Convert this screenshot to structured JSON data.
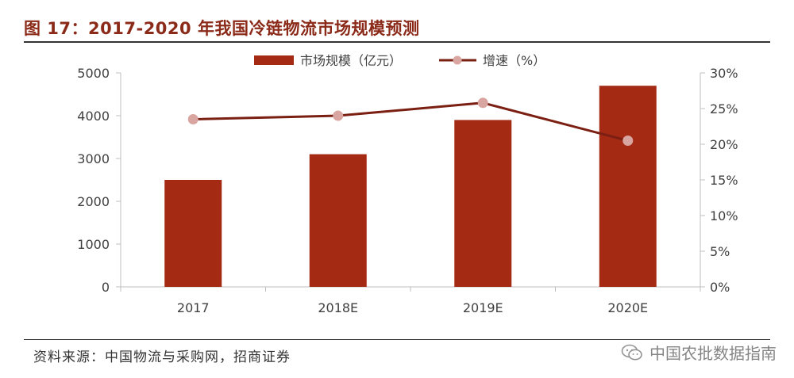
{
  "title": "图 17：2017-2020 年我国冷链物流市场规模预测",
  "source": "资料来源：中国物流与采购网，招商证券",
  "watermark": {
    "text": "中国农批数据指南",
    "icon": "wechat-icon"
  },
  "colors": {
    "bar": "#a52a14",
    "line": "#7a1f12",
    "marker": "#d9a5a0",
    "title": "#8b2a18",
    "axis": "#bfbfbf"
  },
  "chart_data": {
    "type": "bar",
    "title": "图 17：2017-2020 年我国冷链物流市场规模预测",
    "categories": [
      "2017",
      "2018E",
      "2019E",
      "2020E"
    ],
    "series": [
      {
        "name": "市场规模（亿元）",
        "type": "bar",
        "axis": "left",
        "values": [
          2500,
          3100,
          3900,
          4700
        ]
      },
      {
        "name": "增速（%）",
        "type": "line",
        "axis": "right",
        "values": [
          23.5,
          24.0,
          25.8,
          20.5
        ]
      }
    ],
    "yleft": {
      "min": 0,
      "max": 5000,
      "ticks": [
        0,
        1000,
        2000,
        3000,
        4000,
        5000
      ],
      "tick_labels": [
        "0",
        "1000",
        "2000",
        "3000",
        "4000",
        "5000"
      ]
    },
    "yright": {
      "min": 0,
      "max": 30,
      "ticks": [
        0,
        5,
        10,
        15,
        20,
        25,
        30
      ],
      "tick_labels": [
        "0%",
        "5%",
        "10%",
        "15%",
        "20%",
        "25%",
        "30%"
      ]
    },
    "legend": {
      "position": "top-center",
      "entries": [
        "市场规模（亿元）",
        "增速（%）"
      ]
    },
    "grid": false
  }
}
